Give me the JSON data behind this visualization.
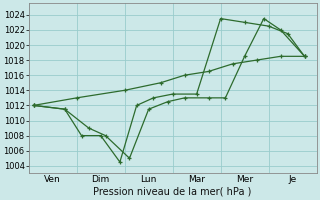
{
  "xlabel": "Pression niveau de la mer( hPa )",
  "bg_color": "#cce8e8",
  "grid_color": "#99cccc",
  "line_color": "#2d6b2d",
  "ylim": [
    1003.0,
    1025.5
  ],
  "yticks": [
    1004,
    1006,
    1008,
    1010,
    1012,
    1014,
    1016,
    1018,
    1020,
    1022,
    1024
  ],
  "day_names": [
    "Ven",
    "Dim",
    "Lun",
    "Mar",
    "Mer",
    "Je"
  ],
  "day_centers": [
    1.0,
    3.0,
    5.0,
    7.0,
    9.0,
    11.0
  ],
  "vline_positions": [
    0,
    2,
    4,
    6,
    8,
    10,
    12
  ],
  "xlim": [
    0,
    12
  ],
  "series1_x": [
    0.2,
    1.5,
    2.5,
    3.2,
    4.2,
    5.0,
    5.8,
    6.5,
    7.5,
    8.2,
    9.0,
    9.8,
    10.5,
    11.5
  ],
  "series1_y": [
    1012,
    1011.5,
    1009,
    1008,
    1005,
    1011.5,
    1012.5,
    1013,
    1013,
    1013,
    1018.5,
    1023.5,
    1022,
    1018.5
  ],
  "series2_x": [
    0.2,
    1.5,
    2.2,
    3.0,
    3.8,
    4.5,
    5.2,
    6.0,
    7.0,
    8.0,
    9.0,
    10.0,
    10.8,
    11.5
  ],
  "series2_y": [
    1012,
    1011.5,
    1008,
    1008,
    1004.5,
    1012,
    1013,
    1013.5,
    1013.5,
    1023.5,
    1023.0,
    1022.5,
    1021.5,
    1018.5
  ],
  "series3_x": [
    0.2,
    2.0,
    4.0,
    5.5,
    6.5,
    7.5,
    8.5,
    9.5,
    10.5,
    11.5
  ],
  "series3_y": [
    1012,
    1013,
    1014,
    1015,
    1016,
    1016.5,
    1017.5,
    1018,
    1018.5,
    1018.5
  ]
}
